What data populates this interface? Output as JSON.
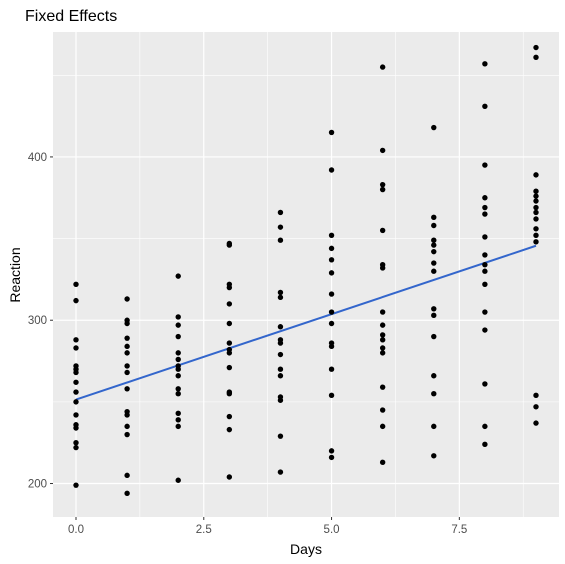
{
  "chart_data": {
    "type": "scatter",
    "title": "Fixed Effects",
    "xlabel": "Days",
    "ylabel": "Reaction",
    "xlim": [
      -0.45,
      9.45
    ],
    "ylim": [
      179.5,
      476.5
    ],
    "x_ticks": [
      0,
      2.5,
      5,
      7.5
    ],
    "x_tick_labels": [
      "0.0",
      "2.5",
      "5.0",
      "7.5"
    ],
    "y_ticks": [
      200,
      300,
      400
    ],
    "y_tick_labels": [
      "200",
      "300",
      "400"
    ],
    "grid": true,
    "legend": "none",
    "colors": {
      "panel_background": "#ebebeb",
      "grid_line": "#ffffff",
      "points": "#000000",
      "fit_line": "#3366cc",
      "tick_label": "#4d4d4d"
    },
    "points": [
      {
        "x": 0,
        "y": 199
      },
      {
        "x": 0,
        "y": 222
      },
      {
        "x": 0,
        "y": 225
      },
      {
        "x": 0,
        "y": 234
      },
      {
        "x": 0,
        "y": 236
      },
      {
        "x": 0,
        "y": 242
      },
      {
        "x": 0,
        "y": 250
      },
      {
        "x": 0,
        "y": 256
      },
      {
        "x": 0,
        "y": 262
      },
      {
        "x": 0,
        "y": 268
      },
      {
        "x": 0,
        "y": 270
      },
      {
        "x": 0,
        "y": 272
      },
      {
        "x": 0,
        "y": 283
      },
      {
        "x": 0,
        "y": 288
      },
      {
        "x": 0,
        "y": 312
      },
      {
        "x": 0,
        "y": 322
      },
      {
        "x": 1,
        "y": 194
      },
      {
        "x": 1,
        "y": 205
      },
      {
        "x": 1,
        "y": 230
      },
      {
        "x": 1,
        "y": 235
      },
      {
        "x": 1,
        "y": 242
      },
      {
        "x": 1,
        "y": 244
      },
      {
        "x": 1,
        "y": 258
      },
      {
        "x": 1,
        "y": 268
      },
      {
        "x": 1,
        "y": 272
      },
      {
        "x": 1,
        "y": 280
      },
      {
        "x": 1,
        "y": 284
      },
      {
        "x": 1,
        "y": 289
      },
      {
        "x": 1,
        "y": 298
      },
      {
        "x": 1,
        "y": 300
      },
      {
        "x": 1,
        "y": 313
      },
      {
        "x": 2,
        "y": 202
      },
      {
        "x": 2,
        "y": 235
      },
      {
        "x": 2,
        "y": 239
      },
      {
        "x": 2,
        "y": 243
      },
      {
        "x": 2,
        "y": 255
      },
      {
        "x": 2,
        "y": 258
      },
      {
        "x": 2,
        "y": 266
      },
      {
        "x": 2,
        "y": 270
      },
      {
        "x": 2,
        "y": 272
      },
      {
        "x": 2,
        "y": 276
      },
      {
        "x": 2,
        "y": 280
      },
      {
        "x": 2,
        "y": 290
      },
      {
        "x": 2,
        "y": 297
      },
      {
        "x": 2,
        "y": 302
      },
      {
        "x": 2,
        "y": 327
      },
      {
        "x": 3,
        "y": 204
      },
      {
        "x": 3,
        "y": 233
      },
      {
        "x": 3,
        "y": 241
      },
      {
        "x": 3,
        "y": 255
      },
      {
        "x": 3,
        "y": 256
      },
      {
        "x": 3,
        "y": 271
      },
      {
        "x": 3,
        "y": 280
      },
      {
        "x": 3,
        "y": 282
      },
      {
        "x": 3,
        "y": 286
      },
      {
        "x": 3,
        "y": 298
      },
      {
        "x": 3,
        "y": 310
      },
      {
        "x": 3,
        "y": 320
      },
      {
        "x": 3,
        "y": 322
      },
      {
        "x": 3,
        "y": 346
      },
      {
        "x": 3,
        "y": 347
      },
      {
        "x": 4,
        "y": 207
      },
      {
        "x": 4,
        "y": 229
      },
      {
        "x": 4,
        "y": 251
      },
      {
        "x": 4,
        "y": 253
      },
      {
        "x": 4,
        "y": 266
      },
      {
        "x": 4,
        "y": 270
      },
      {
        "x": 4,
        "y": 279
      },
      {
        "x": 4,
        "y": 286
      },
      {
        "x": 4,
        "y": 288
      },
      {
        "x": 4,
        "y": 296
      },
      {
        "x": 4,
        "y": 314
      },
      {
        "x": 4,
        "y": 317
      },
      {
        "x": 4,
        "y": 349
      },
      {
        "x": 4,
        "y": 357
      },
      {
        "x": 4,
        "y": 366
      },
      {
        "x": 5,
        "y": 216
      },
      {
        "x": 5,
        "y": 220
      },
      {
        "x": 5,
        "y": 254
      },
      {
        "x": 5,
        "y": 270
      },
      {
        "x": 5,
        "y": 284
      },
      {
        "x": 5,
        "y": 286
      },
      {
        "x": 5,
        "y": 298
      },
      {
        "x": 5,
        "y": 305
      },
      {
        "x": 5,
        "y": 316
      },
      {
        "x": 5,
        "y": 329
      },
      {
        "x": 5,
        "y": 337
      },
      {
        "x": 5,
        "y": 344
      },
      {
        "x": 5,
        "y": 352
      },
      {
        "x": 5,
        "y": 392
      },
      {
        "x": 5,
        "y": 415
      },
      {
        "x": 6,
        "y": 213
      },
      {
        "x": 6,
        "y": 235
      },
      {
        "x": 6,
        "y": 245
      },
      {
        "x": 6,
        "y": 259
      },
      {
        "x": 6,
        "y": 280
      },
      {
        "x": 6,
        "y": 283
      },
      {
        "x": 6,
        "y": 288
      },
      {
        "x": 6,
        "y": 291
      },
      {
        "x": 6,
        "y": 297
      },
      {
        "x": 6,
        "y": 305
      },
      {
        "x": 6,
        "y": 332
      },
      {
        "x": 6,
        "y": 334
      },
      {
        "x": 6,
        "y": 355
      },
      {
        "x": 6,
        "y": 380
      },
      {
        "x": 6,
        "y": 383
      },
      {
        "x": 6,
        "y": 404
      },
      {
        "x": 6,
        "y": 455
      },
      {
        "x": 7,
        "y": 217
      },
      {
        "x": 7,
        "y": 235
      },
      {
        "x": 7,
        "y": 255
      },
      {
        "x": 7,
        "y": 266
      },
      {
        "x": 7,
        "y": 290
      },
      {
        "x": 7,
        "y": 303
      },
      {
        "x": 7,
        "y": 307
      },
      {
        "x": 7,
        "y": 330
      },
      {
        "x": 7,
        "y": 335
      },
      {
        "x": 7,
        "y": 342
      },
      {
        "x": 7,
        "y": 346
      },
      {
        "x": 7,
        "y": 349
      },
      {
        "x": 7,
        "y": 358
      },
      {
        "x": 7,
        "y": 363
      },
      {
        "x": 7,
        "y": 418
      },
      {
        "x": 8,
        "y": 224
      },
      {
        "x": 8,
        "y": 235
      },
      {
        "x": 8,
        "y": 261
      },
      {
        "x": 8,
        "y": 294
      },
      {
        "x": 8,
        "y": 305
      },
      {
        "x": 8,
        "y": 322
      },
      {
        "x": 8,
        "y": 330
      },
      {
        "x": 8,
        "y": 334
      },
      {
        "x": 8,
        "y": 340
      },
      {
        "x": 8,
        "y": 351
      },
      {
        "x": 8,
        "y": 365
      },
      {
        "x": 8,
        "y": 369
      },
      {
        "x": 8,
        "y": 375
      },
      {
        "x": 8,
        "y": 395
      },
      {
        "x": 8,
        "y": 431
      },
      {
        "x": 8,
        "y": 457
      },
      {
        "x": 9,
        "y": 237
      },
      {
        "x": 9,
        "y": 247
      },
      {
        "x": 9,
        "y": 254
      },
      {
        "x": 9,
        "y": 348
      },
      {
        "x": 9,
        "y": 352
      },
      {
        "x": 9,
        "y": 356
      },
      {
        "x": 9,
        "y": 362
      },
      {
        "x": 9,
        "y": 366
      },
      {
        "x": 9,
        "y": 369
      },
      {
        "x": 9,
        "y": 373
      },
      {
        "x": 9,
        "y": 376
      },
      {
        "x": 9,
        "y": 379
      },
      {
        "x": 9,
        "y": 389
      },
      {
        "x": 9,
        "y": 461
      },
      {
        "x": 9,
        "y": 467
      }
    ],
    "fit_line": {
      "x": [
        0,
        9
      ],
      "y": [
        251.4,
        345.6
      ]
    }
  }
}
